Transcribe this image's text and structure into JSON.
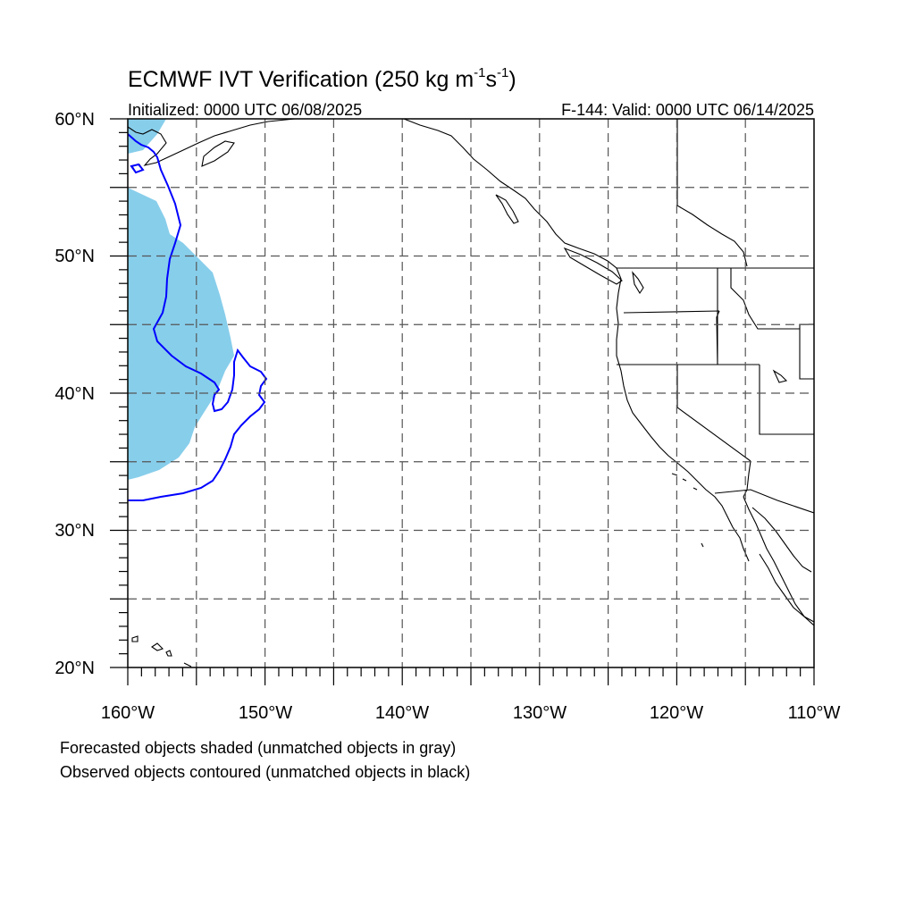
{
  "title": {
    "main": "ECMWF IVT Verification (250 kg m",
    "exp1": "-1",
    "mid": "s",
    "exp2": "-1",
    "close": ")"
  },
  "initialized_text": "Initialized: 0000 UTC 06/08/2025",
  "valid_text": "F-144: Valid: 0000 UTC 06/14/2025",
  "map": {
    "lon_range": [
      -160,
      -110
    ],
    "lat_range": [
      20,
      60
    ],
    "lat_labels": [
      "60°N",
      "50°N",
      "40°N",
      "30°N",
      "20°N"
    ],
    "lon_labels": [
      "160°W",
      "150°W",
      "140°W",
      "130°W",
      "120°W",
      "110°W"
    ],
    "grid_style": "dashed",
    "forecast_object_color": "#87ceeb",
    "observed_contour_color": "#0000ff",
    "coastline_color": "#000000"
  },
  "footnotes": [
    "Forecasted objects shaded (unmatched objects in gray)",
    "Observed objects contoured (unmatched objects in black)"
  ]
}
